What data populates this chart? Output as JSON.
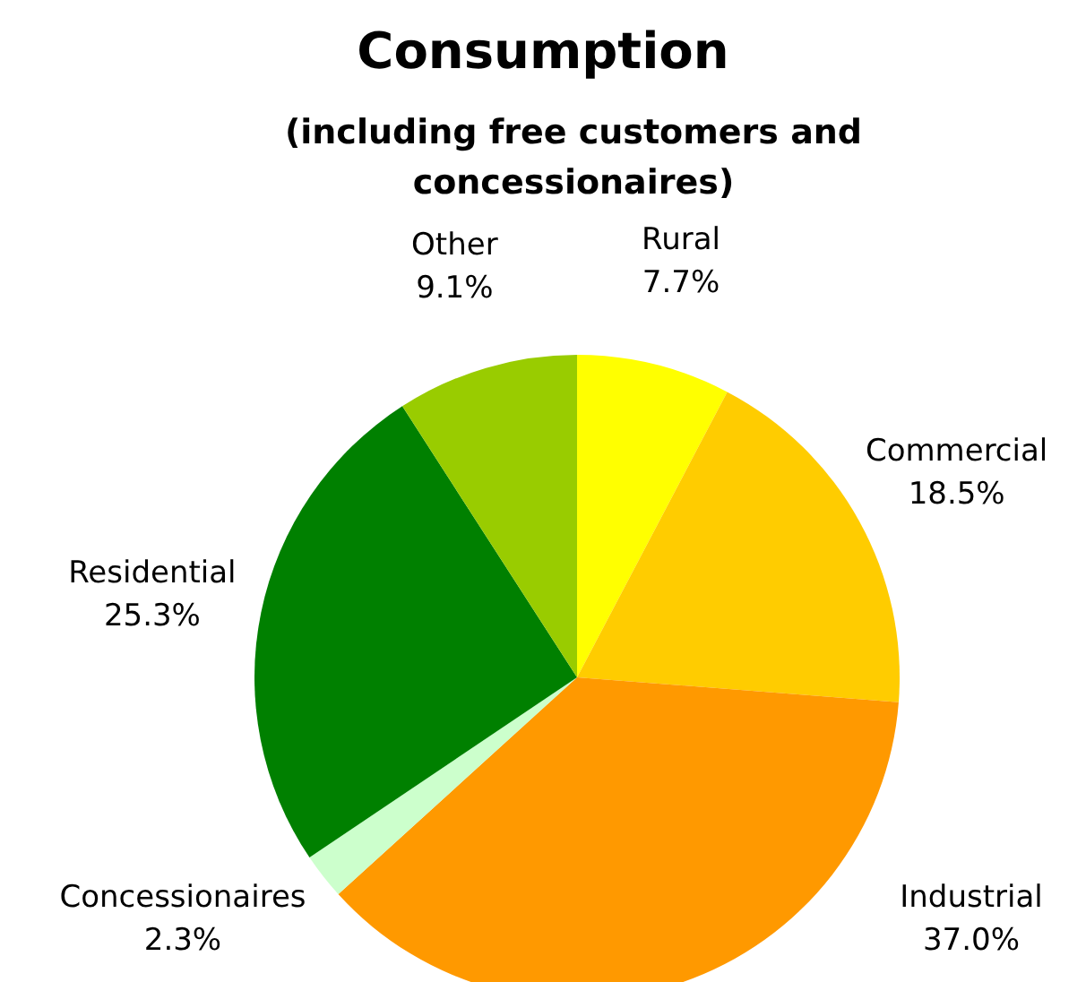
{
  "chart_data": {
    "type": "pie",
    "title": "Consumption",
    "subtitle": "(including free customers and concessionaires)",
    "categories": [
      "Rural",
      "Commercial",
      "Industrial",
      "Concessionaires",
      "Residential",
      "Other"
    ],
    "values": [
      7.7,
      18.5,
      37.0,
      2.3,
      25.3,
      9.1
    ],
    "value_labels": [
      "7.7%",
      "18.5%",
      "37.0%",
      "2.3%",
      "25.3%",
      "9.1%"
    ],
    "colors": [
      "#ffff00",
      "#ffcc00",
      "#ff9900",
      "#ccffcc",
      "#008000",
      "#99cc00"
    ],
    "legend": false
  }
}
